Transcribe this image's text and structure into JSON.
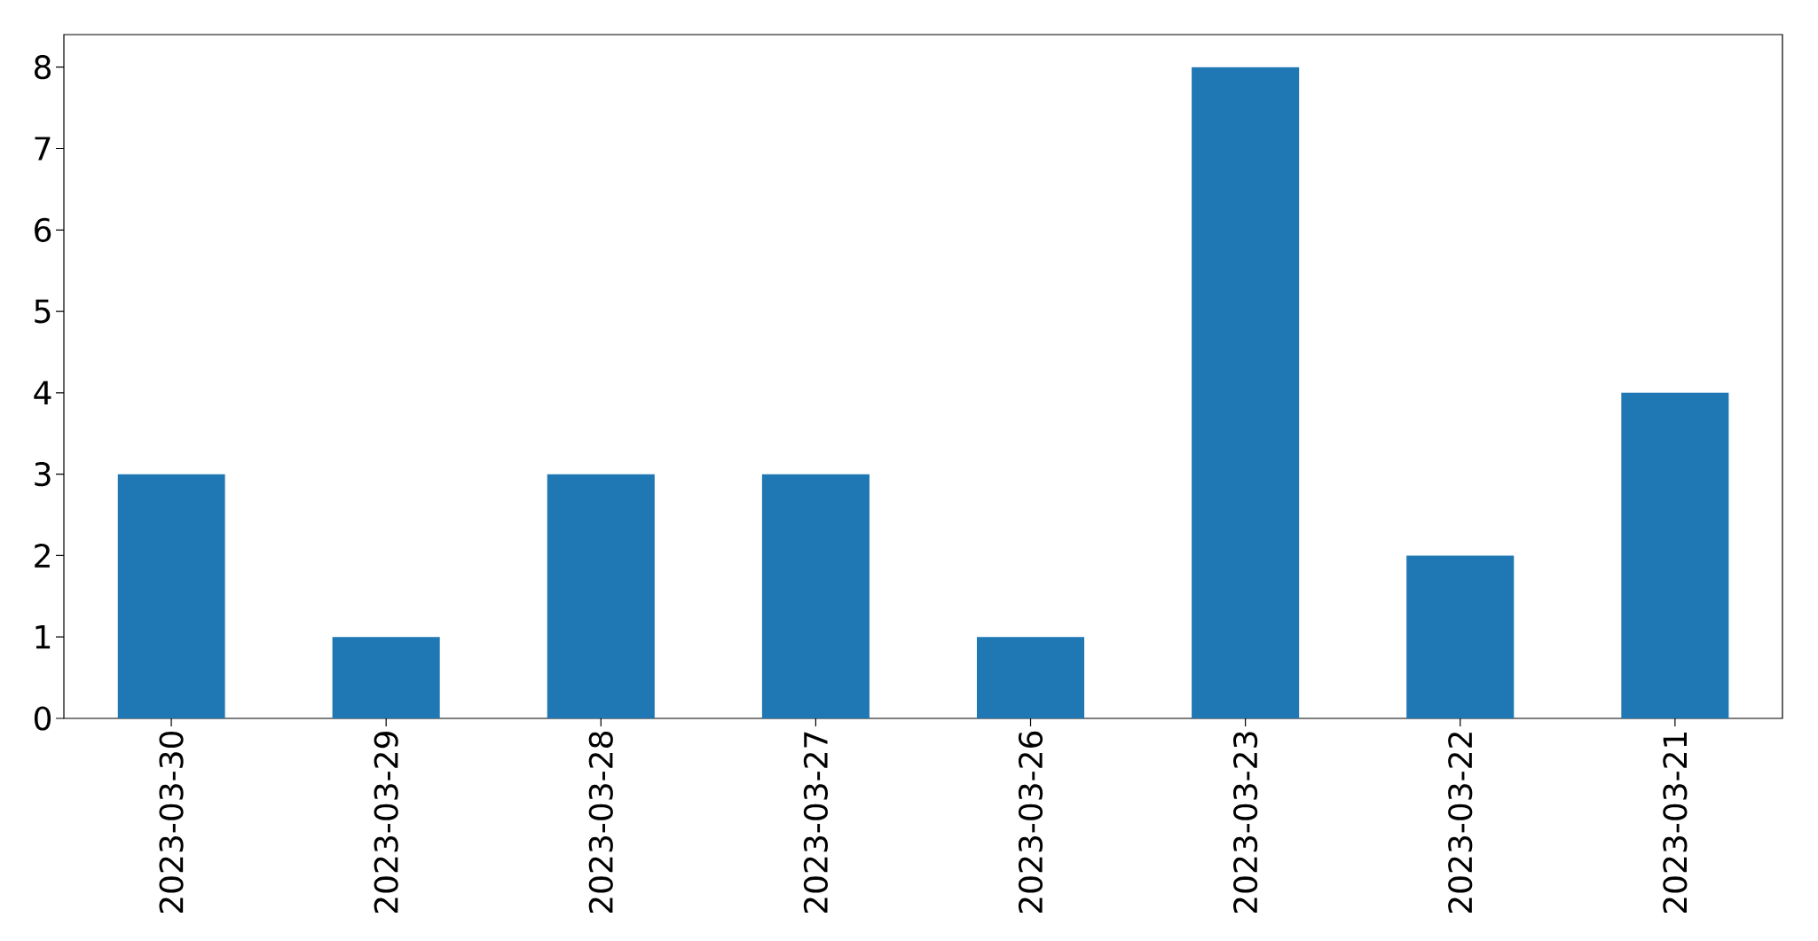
{
  "chart_data": {
    "type": "bar",
    "categories": [
      "2023-03-30",
      "2023-03-29",
      "2023-03-28",
      "2023-03-27",
      "2023-03-26",
      "2023-03-23",
      "2023-03-22",
      "2023-03-21"
    ],
    "values": [
      3,
      1,
      3,
      3,
      1,
      8,
      2,
      4
    ],
    "color": "#1f77b4",
    "ylim": [
      0,
      8.4
    ],
    "yticks": [
      0,
      1,
      2,
      3,
      4,
      5,
      6,
      7,
      8
    ]
  }
}
